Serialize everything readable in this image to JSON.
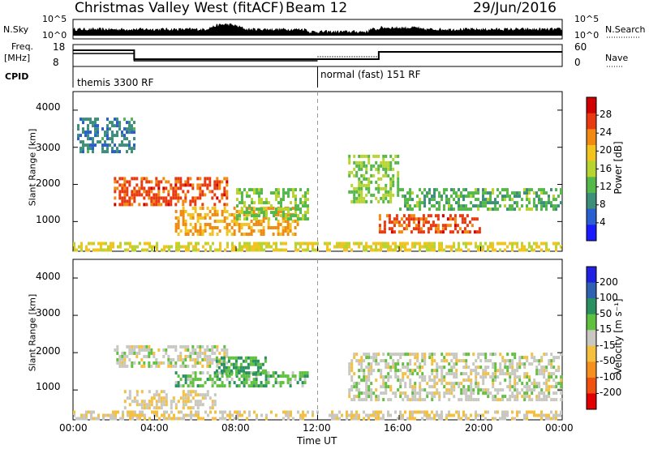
{
  "header": {
    "station": "Christmas Valley West (fitACF)",
    "beam": "Beam 12",
    "date": "29/Jun/2016"
  },
  "noise_panel": {
    "left_label": "N.Sky",
    "right_label": "N.Search",
    "left_ticks": [
      "10^5",
      "10^0"
    ],
    "right_ticks": [
      "10^5",
      "10^0"
    ]
  },
  "freq_panel": {
    "left_label_top": "Freq.",
    "left_label_unit": "[MHz]",
    "left_ticks": [
      "18",
      "8"
    ],
    "right_label": "Nave",
    "right_ticks": [
      "60",
      "0"
    ]
  },
  "cpid": {
    "label": "CPID",
    "segments": [
      {
        "text": "themis 3300 RF",
        "start_hour": 0
      },
      {
        "text": "normal (fast) 151 RF",
        "start_hour": 12
      }
    ]
  },
  "colors": {
    "power": [
      "#1a1aff",
      "#2a5fd0",
      "#3d8f7a",
      "#55b84a",
      "#b8d430",
      "#f2c420",
      "#f08a10",
      "#e83a10",
      "#d00000"
    ],
    "velocity": [
      "#e00000",
      "#f05010",
      "#f59020",
      "#f5c040",
      "#c8c8c0",
      "#60c040",
      "#2a9060",
      "#3060b0",
      "#2020e0"
    ],
    "axis": "#000000",
    "gray_scatter": "#c8c8c0"
  },
  "chart_data": [
    {
      "type": "heatmap",
      "name": "power",
      "ylabel": "Slant Range [km]",
      "yticks": [
        "1000",
        "2000",
        "3000",
        "4000"
      ],
      "ylim": [
        200,
        4500
      ],
      "xlim": [
        0,
        24
      ],
      "colorbar_label": "Power [dB]",
      "colorbar_ticks": [
        "4",
        "8",
        "12",
        "16",
        "20",
        "24",
        "28"
      ],
      "colorbar_range": [
        0,
        32
      ],
      "features": [
        {
          "t_start": 2.0,
          "t_end": 7.5,
          "r_low": 1500,
          "r_high": 2200,
          "value": 26
        },
        {
          "t_start": 5.0,
          "t_end": 11.0,
          "r_low": 700,
          "r_high": 1400,
          "value": 22
        },
        {
          "t_start": 8.0,
          "t_end": 11.5,
          "r_low": 1100,
          "r_high": 1900,
          "value": 14
        },
        {
          "t_start": 0.2,
          "t_end": 3.0,
          "r_low": 2900,
          "r_high": 3800,
          "value": 8
        },
        {
          "t_start": 13.5,
          "t_end": 16.0,
          "r_low": 1500,
          "r_high": 2800,
          "value": 14
        },
        {
          "t_start": 15.0,
          "t_end": 20.0,
          "r_low": 700,
          "r_high": 1200,
          "value": 26
        },
        {
          "t_start": 16.0,
          "t_end": 24.0,
          "r_low": 1300,
          "r_high": 1900,
          "value": 12
        },
        {
          "t_start": 0.0,
          "t_end": 24.0,
          "r_low": 200,
          "r_high": 450,
          "value": 18
        }
      ]
    },
    {
      "type": "heatmap",
      "name": "velocity",
      "ylabel": "Slant Range [km]",
      "yticks": [
        "1000",
        "2000",
        "3000",
        "4000"
      ],
      "ylim": [
        200,
        4500
      ],
      "xlim": [
        0,
        24
      ],
      "colorbar_label": "Velocity [m s⁻¹]",
      "colorbar_ticks": [
        "200",
        "100",
        "50",
        "15",
        "-15",
        "-50",
        "-100",
        "-200"
      ],
      "colorbar_range": [
        -250,
        250
      ],
      "features": [
        {
          "t_start": 2.0,
          "t_end": 7.5,
          "r_low": 1600,
          "r_high": 2200,
          "value": 0
        },
        {
          "t_start": 5.0,
          "t_end": 11.5,
          "r_low": 1100,
          "r_high": 1500,
          "value": -60
        },
        {
          "t_start": 7.0,
          "t_end": 9.5,
          "r_low": 1400,
          "r_high": 1900,
          "value": -90
        },
        {
          "t_start": 2.5,
          "t_end": 7.0,
          "r_low": 500,
          "r_high": 1000,
          "value": 30
        },
        {
          "t_start": 13.5,
          "t_end": 24.0,
          "r_low": 700,
          "r_high": 2000,
          "value": 0
        },
        {
          "t_start": 0.0,
          "t_end": 24.0,
          "r_low": 200,
          "r_high": 450,
          "value": 25
        }
      ]
    }
  ],
  "xaxis": {
    "ticks": [
      "00:00",
      "04:00",
      "08:00",
      "12:00",
      "16:00",
      "20:00",
      "00:00"
    ],
    "label": "Time UT"
  }
}
